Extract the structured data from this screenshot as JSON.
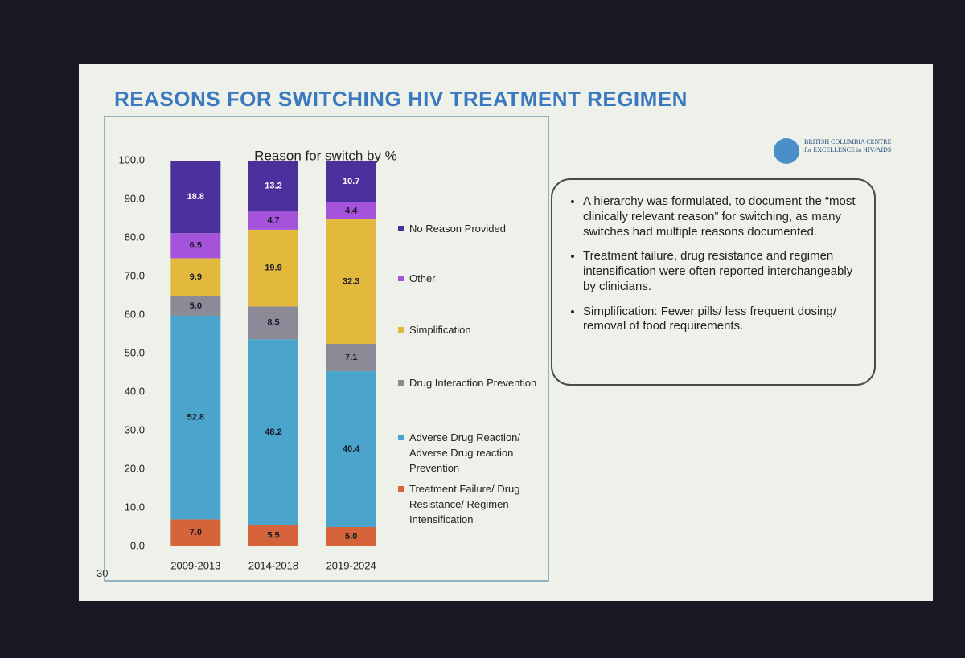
{
  "slide": {
    "title": "REASONS FOR SWITCHING HIV TREATMENT REGIMEN",
    "logo": "BRITISH COLUMBIA CENTRE for EXCELLENCE in HIV/AIDS",
    "page_number": "30",
    "bullets": [
      "A hierarchy was formulated, to document the “most clinically relevant reason” for switching, as many switches had multiple reasons documented.",
      "Treatment failure, drug resistance and regimen intensification were often reported interchangeably by clinicians.",
      "Simplification: Fewer pills/ less frequent dosing/ removal of food requirements."
    ]
  },
  "chart_data": {
    "type": "stacked_bar",
    "title": "Reason for switch by %",
    "categories": [
      "2009-2013",
      "2014-2018",
      "2019-2024"
    ],
    "ylim": [
      0,
      100
    ],
    "yticks": [
      {
        "value": 0,
        "label": "0.0"
      },
      {
        "value": 10,
        "label": "10.0"
      },
      {
        "value": 20,
        "label": "20.0"
      },
      {
        "value": 30,
        "label": "30.0"
      },
      {
        "value": 40,
        "label": "40.0"
      },
      {
        "value": 50,
        "label": "50.0"
      },
      {
        "value": 60,
        "label": "60.0"
      },
      {
        "value": 70,
        "label": "70.0"
      },
      {
        "value": 80,
        "label": "80.0"
      },
      {
        "value": 90,
        "label": "90.0"
      },
      {
        "value": 100,
        "label": "100.0"
      }
    ],
    "grid": false,
    "legend": "right",
    "series": [
      {
        "name": "Treatment Failure/ Drug Resistance/ Regimen Intensification",
        "color": "#d5643a",
        "values": [
          7.0,
          5.5,
          5.0
        ],
        "value_labels": [
          "7.0",
          "5.5",
          "5.0"
        ]
      },
      {
        "name": "Adverse Drug Reaction/ Adverse Drug reaction Prevention",
        "color": "#4ba4cb",
        "values": [
          52.8,
          48.2,
          40.4
        ],
        "value_labels": [
          "52.8",
          "48.2",
          "40.4"
        ]
      },
      {
        "name": "Drug Interaction Prevention",
        "color": "#8b8b98",
        "values": [
          5.0,
          8.5,
          7.1
        ],
        "value_labels": [
          "5.0",
          "8.5",
          "7.1"
        ]
      },
      {
        "name": "Simplification",
        "color": "#e2b93c",
        "values": [
          9.9,
          19.9,
          32.3
        ],
        "value_labels": [
          "9.9",
          "19.9",
          "32.3"
        ]
      },
      {
        "name": "Other",
        "color": "#a653dc",
        "values": [
          6.5,
          4.7,
          4.4
        ],
        "value_labels": [
          "6.5",
          "4.7",
          "4.4"
        ]
      },
      {
        "name": "No Reason Provided",
        "color": "#4b2f9c",
        "values": [
          18.8,
          13.2,
          10.7
        ],
        "value_labels": [
          "18.8",
          "13.2",
          "10.7"
        ]
      }
    ]
  }
}
